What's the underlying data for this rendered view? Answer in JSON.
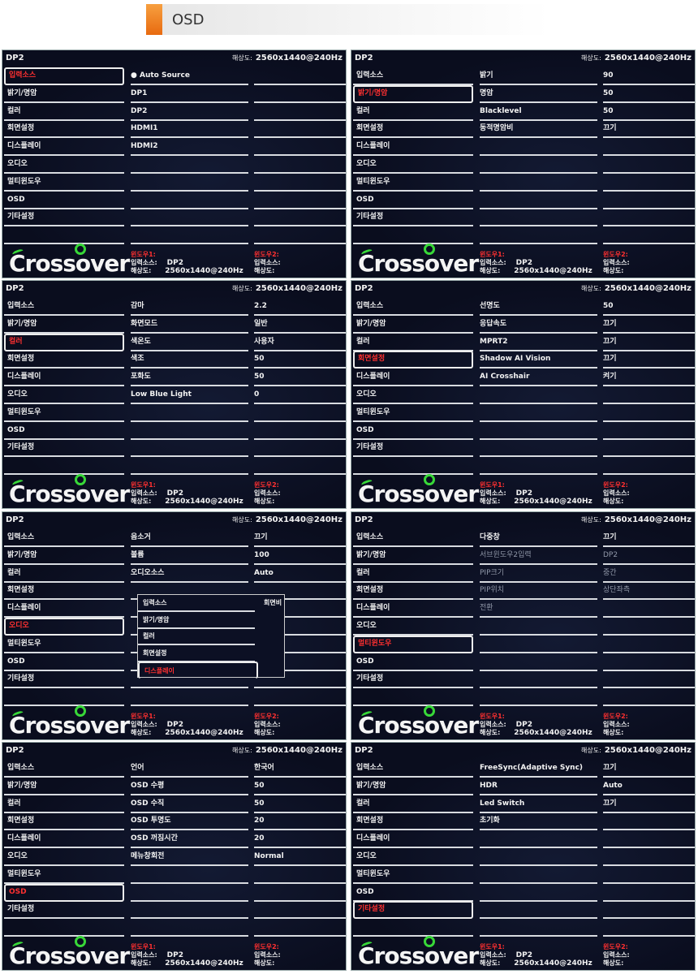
{
  "header": {
    "title": "OSD",
    "accent": "#f08020"
  },
  "osd": {
    "source": "DP2",
    "resolution_label": "해상도:",
    "resolution": "2560x1440@240Hz",
    "logo_text": "Crossover",
    "menu": [
      "입력소스",
      "밝기/명암",
      "컬러",
      "회면설정",
      "디스플레이",
      "오디오",
      "멀티윈도우",
      "OSD",
      "기타설정"
    ],
    "footer": {
      "window1": "윈도우1:",
      "window2": "윈도우2:",
      "input_label": "입력소스:",
      "res_label": "해상도:",
      "input_value": "DP2",
      "res_value": "2560x1440@240Hz"
    },
    "selected_color": "#ff3030"
  },
  "panels": [
    {
      "selected": 0,
      "items": [
        "● Auto Source",
        "DP1",
        "DP2",
        "HDMI1",
        "HDMI2"
      ],
      "values": [
        "",
        "",
        "",
        "",
        ""
      ]
    },
    {
      "selected": 1,
      "items": [
        "밝기",
        "명암",
        "Blacklevel",
        "동적명암비"
      ],
      "values": [
        "90",
        "50",
        "50",
        "끄기"
      ]
    },
    {
      "selected": 2,
      "items": [
        "감마",
        "화면모드",
        "색온도",
        "색조",
        "포화도",
        "Low Blue Light"
      ],
      "values": [
        "2.2",
        "일반",
        "사용자",
        "50",
        "50",
        "0"
      ]
    },
    {
      "selected": 3,
      "items": [
        "선명도",
        "응답속도",
        "MPRT2",
        "Shadow AI Vision",
        "AI Crosshair"
      ],
      "values": [
        "50",
        "끄기",
        "끄기",
        "끄기",
        "켜기"
      ]
    },
    {
      "selected": 5,
      "items": [
        "음소거",
        "볼륨",
        "오디오소스"
      ],
      "values": [
        "끄기",
        "100",
        "Auto"
      ],
      "popup": {
        "items": [
          "입력소스",
          "밝기/명암",
          "컬러",
          "회면설정",
          "디스플레이"
        ],
        "selected": 4,
        "right": "회면비"
      }
    },
    {
      "selected": 6,
      "items": [
        "다중창",
        "서브윈도우2입력",
        "PIP크기",
        "PIP위치",
        "전환"
      ],
      "values": [
        "끄기",
        "DP2",
        "중간",
        "상단좌측",
        ""
      ],
      "disabled_rows": [
        1,
        2,
        3,
        4
      ]
    },
    {
      "selected": 7,
      "items": [
        "언어",
        "OSD 수평",
        "OSD 수직",
        "OSD 투명도",
        "OSD 꺼짐시간",
        "메뉴창회전"
      ],
      "values": [
        "한국어",
        "50",
        "50",
        "20",
        "20",
        "Normal"
      ]
    },
    {
      "selected": 8,
      "items": [
        "FreeSync(Adaptive Sync)",
        "HDR",
        "Led Switch",
        "초기화"
      ],
      "values": [
        "끄기",
        "Auto",
        "끄기",
        ""
      ]
    }
  ]
}
